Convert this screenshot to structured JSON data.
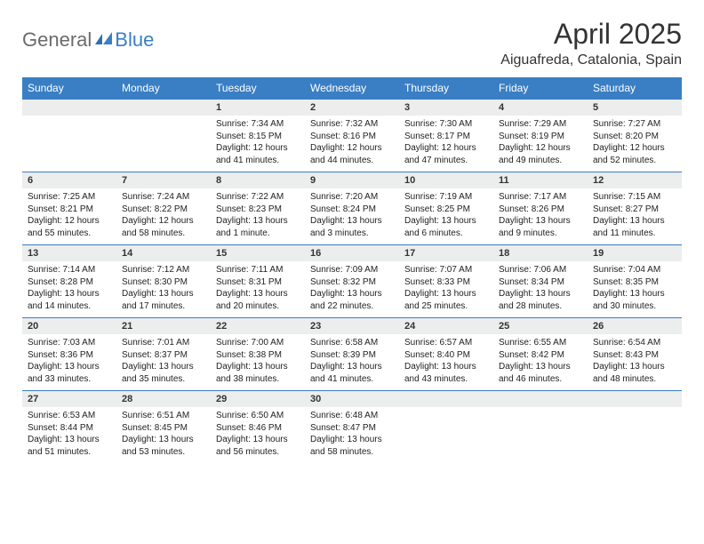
{
  "logo": {
    "general": "General",
    "blue": "Blue"
  },
  "title": "April 2025",
  "location": "Aiguafreda, Catalonia, Spain",
  "colors": {
    "header_bg": "#3a7fc4",
    "header_fg": "#ffffff",
    "band_bg": "#eceded",
    "row_border": "#3a7fc4",
    "logo_gray": "#6b6b6b",
    "logo_blue": "#3a7fc4"
  },
  "weekdays": [
    "Sunday",
    "Monday",
    "Tuesday",
    "Wednesday",
    "Thursday",
    "Friday",
    "Saturday"
  ],
  "weeks": [
    [
      {
        "day": "",
        "sunrise": "",
        "sunset": "",
        "daylight": ""
      },
      {
        "day": "",
        "sunrise": "",
        "sunset": "",
        "daylight": ""
      },
      {
        "day": "1",
        "sunrise": "Sunrise: 7:34 AM",
        "sunset": "Sunset: 8:15 PM",
        "daylight": "Daylight: 12 hours and 41 minutes."
      },
      {
        "day": "2",
        "sunrise": "Sunrise: 7:32 AM",
        "sunset": "Sunset: 8:16 PM",
        "daylight": "Daylight: 12 hours and 44 minutes."
      },
      {
        "day": "3",
        "sunrise": "Sunrise: 7:30 AM",
        "sunset": "Sunset: 8:17 PM",
        "daylight": "Daylight: 12 hours and 47 minutes."
      },
      {
        "day": "4",
        "sunrise": "Sunrise: 7:29 AM",
        "sunset": "Sunset: 8:19 PM",
        "daylight": "Daylight: 12 hours and 49 minutes."
      },
      {
        "day": "5",
        "sunrise": "Sunrise: 7:27 AM",
        "sunset": "Sunset: 8:20 PM",
        "daylight": "Daylight: 12 hours and 52 minutes."
      }
    ],
    [
      {
        "day": "6",
        "sunrise": "Sunrise: 7:25 AM",
        "sunset": "Sunset: 8:21 PM",
        "daylight": "Daylight: 12 hours and 55 minutes."
      },
      {
        "day": "7",
        "sunrise": "Sunrise: 7:24 AM",
        "sunset": "Sunset: 8:22 PM",
        "daylight": "Daylight: 12 hours and 58 minutes."
      },
      {
        "day": "8",
        "sunrise": "Sunrise: 7:22 AM",
        "sunset": "Sunset: 8:23 PM",
        "daylight": "Daylight: 13 hours and 1 minute."
      },
      {
        "day": "9",
        "sunrise": "Sunrise: 7:20 AM",
        "sunset": "Sunset: 8:24 PM",
        "daylight": "Daylight: 13 hours and 3 minutes."
      },
      {
        "day": "10",
        "sunrise": "Sunrise: 7:19 AM",
        "sunset": "Sunset: 8:25 PM",
        "daylight": "Daylight: 13 hours and 6 minutes."
      },
      {
        "day": "11",
        "sunrise": "Sunrise: 7:17 AM",
        "sunset": "Sunset: 8:26 PM",
        "daylight": "Daylight: 13 hours and 9 minutes."
      },
      {
        "day": "12",
        "sunrise": "Sunrise: 7:15 AM",
        "sunset": "Sunset: 8:27 PM",
        "daylight": "Daylight: 13 hours and 11 minutes."
      }
    ],
    [
      {
        "day": "13",
        "sunrise": "Sunrise: 7:14 AM",
        "sunset": "Sunset: 8:28 PM",
        "daylight": "Daylight: 13 hours and 14 minutes."
      },
      {
        "day": "14",
        "sunrise": "Sunrise: 7:12 AM",
        "sunset": "Sunset: 8:30 PM",
        "daylight": "Daylight: 13 hours and 17 minutes."
      },
      {
        "day": "15",
        "sunrise": "Sunrise: 7:11 AM",
        "sunset": "Sunset: 8:31 PM",
        "daylight": "Daylight: 13 hours and 20 minutes."
      },
      {
        "day": "16",
        "sunrise": "Sunrise: 7:09 AM",
        "sunset": "Sunset: 8:32 PM",
        "daylight": "Daylight: 13 hours and 22 minutes."
      },
      {
        "day": "17",
        "sunrise": "Sunrise: 7:07 AM",
        "sunset": "Sunset: 8:33 PM",
        "daylight": "Daylight: 13 hours and 25 minutes."
      },
      {
        "day": "18",
        "sunrise": "Sunrise: 7:06 AM",
        "sunset": "Sunset: 8:34 PM",
        "daylight": "Daylight: 13 hours and 28 minutes."
      },
      {
        "day": "19",
        "sunrise": "Sunrise: 7:04 AM",
        "sunset": "Sunset: 8:35 PM",
        "daylight": "Daylight: 13 hours and 30 minutes."
      }
    ],
    [
      {
        "day": "20",
        "sunrise": "Sunrise: 7:03 AM",
        "sunset": "Sunset: 8:36 PM",
        "daylight": "Daylight: 13 hours and 33 minutes."
      },
      {
        "day": "21",
        "sunrise": "Sunrise: 7:01 AM",
        "sunset": "Sunset: 8:37 PM",
        "daylight": "Daylight: 13 hours and 35 minutes."
      },
      {
        "day": "22",
        "sunrise": "Sunrise: 7:00 AM",
        "sunset": "Sunset: 8:38 PM",
        "daylight": "Daylight: 13 hours and 38 minutes."
      },
      {
        "day": "23",
        "sunrise": "Sunrise: 6:58 AM",
        "sunset": "Sunset: 8:39 PM",
        "daylight": "Daylight: 13 hours and 41 minutes."
      },
      {
        "day": "24",
        "sunrise": "Sunrise: 6:57 AM",
        "sunset": "Sunset: 8:40 PM",
        "daylight": "Daylight: 13 hours and 43 minutes."
      },
      {
        "day": "25",
        "sunrise": "Sunrise: 6:55 AM",
        "sunset": "Sunset: 8:42 PM",
        "daylight": "Daylight: 13 hours and 46 minutes."
      },
      {
        "day": "26",
        "sunrise": "Sunrise: 6:54 AM",
        "sunset": "Sunset: 8:43 PM",
        "daylight": "Daylight: 13 hours and 48 minutes."
      }
    ],
    [
      {
        "day": "27",
        "sunrise": "Sunrise: 6:53 AM",
        "sunset": "Sunset: 8:44 PM",
        "daylight": "Daylight: 13 hours and 51 minutes."
      },
      {
        "day": "28",
        "sunrise": "Sunrise: 6:51 AM",
        "sunset": "Sunset: 8:45 PM",
        "daylight": "Daylight: 13 hours and 53 minutes."
      },
      {
        "day": "29",
        "sunrise": "Sunrise: 6:50 AM",
        "sunset": "Sunset: 8:46 PM",
        "daylight": "Daylight: 13 hours and 56 minutes."
      },
      {
        "day": "30",
        "sunrise": "Sunrise: 6:48 AM",
        "sunset": "Sunset: 8:47 PM",
        "daylight": "Daylight: 13 hours and 58 minutes."
      },
      {
        "day": "",
        "sunrise": "",
        "sunset": "",
        "daylight": ""
      },
      {
        "day": "",
        "sunrise": "",
        "sunset": "",
        "daylight": ""
      },
      {
        "day": "",
        "sunrise": "",
        "sunset": "",
        "daylight": ""
      }
    ]
  ]
}
